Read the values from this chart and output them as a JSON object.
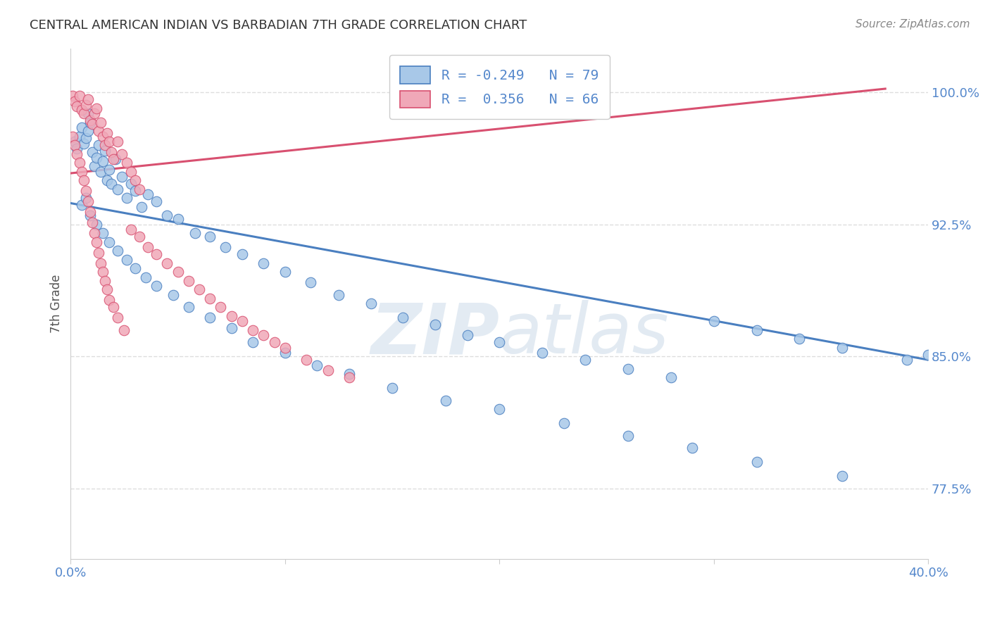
{
  "title": "CENTRAL AMERICAN INDIAN VS BARBADIAN 7TH GRADE CORRELATION CHART",
  "source": "Source: ZipAtlas.com",
  "ylabel": "7th Grade",
  "ytick_labels": [
    "77.5%",
    "85.0%",
    "92.5%",
    "100.0%"
  ],
  "ytick_values": [
    0.775,
    0.85,
    0.925,
    1.0
  ],
  "xmin": 0.0,
  "xmax": 0.4,
  "ymin": 0.735,
  "ymax": 1.025,
  "color_blue": "#a8c8e8",
  "color_pink": "#f0a8b8",
  "color_blue_line": "#4a7fc0",
  "color_pink_line": "#d85070",
  "color_blue_text": "#5588cc",
  "color_title": "#333333",
  "color_source": "#888888",
  "background_color": "#ffffff",
  "grid_color": "#dddddd",
  "blue_line_x": [
    0.0,
    0.4
  ],
  "blue_line_y": [
    0.937,
    0.848
  ],
  "pink_line_x": [
    0.0,
    0.38
  ],
  "pink_line_y": [
    0.954,
    1.002
  ],
  "blue_points_x": [
    0.002,
    0.003,
    0.004,
    0.005,
    0.006,
    0.007,
    0.008,
    0.009,
    0.01,
    0.011,
    0.012,
    0.013,
    0.014,
    0.015,
    0.016,
    0.017,
    0.018,
    0.019,
    0.021,
    0.022,
    0.024,
    0.026,
    0.028,
    0.03,
    0.033,
    0.036,
    0.04,
    0.045,
    0.05,
    0.058,
    0.065,
    0.072,
    0.08,
    0.09,
    0.1,
    0.112,
    0.125,
    0.14,
    0.155,
    0.17,
    0.185,
    0.2,
    0.22,
    0.24,
    0.26,
    0.28,
    0.3,
    0.32,
    0.34,
    0.36,
    0.39,
    0.005,
    0.007,
    0.009,
    0.012,
    0.015,
    0.018,
    0.022,
    0.026,
    0.03,
    0.035,
    0.04,
    0.048,
    0.055,
    0.065,
    0.075,
    0.085,
    0.1,
    0.115,
    0.13,
    0.15,
    0.175,
    0.2,
    0.23,
    0.26,
    0.29,
    0.32,
    0.36,
    0.4,
    0.008
  ],
  "blue_points_y": [
    0.972,
    0.968,
    0.975,
    0.98,
    0.971,
    0.974,
    0.978,
    0.983,
    0.966,
    0.958,
    0.963,
    0.97,
    0.955,
    0.961,
    0.967,
    0.95,
    0.956,
    0.948,
    0.962,
    0.945,
    0.952,
    0.94,
    0.948,
    0.944,
    0.935,
    0.942,
    0.938,
    0.93,
    0.928,
    0.92,
    0.918,
    0.912,
    0.908,
    0.903,
    0.898,
    0.892,
    0.885,
    0.88,
    0.872,
    0.868,
    0.862,
    0.858,
    0.852,
    0.848,
    0.843,
    0.838,
    0.87,
    0.865,
    0.86,
    0.855,
    0.848,
    0.936,
    0.94,
    0.93,
    0.925,
    0.92,
    0.915,
    0.91,
    0.905,
    0.9,
    0.895,
    0.89,
    0.885,
    0.878,
    0.872,
    0.866,
    0.858,
    0.852,
    0.845,
    0.84,
    0.832,
    0.825,
    0.82,
    0.812,
    0.805,
    0.798,
    0.79,
    0.782,
    0.851,
    0.988
  ],
  "pink_points_x": [
    0.001,
    0.002,
    0.003,
    0.004,
    0.005,
    0.006,
    0.007,
    0.008,
    0.009,
    0.01,
    0.011,
    0.012,
    0.013,
    0.014,
    0.015,
    0.016,
    0.017,
    0.018,
    0.019,
    0.02,
    0.022,
    0.024,
    0.026,
    0.028,
    0.03,
    0.032,
    0.001,
    0.002,
    0.003,
    0.004,
    0.005,
    0.006,
    0.007,
    0.008,
    0.009,
    0.01,
    0.011,
    0.012,
    0.013,
    0.014,
    0.015,
    0.016,
    0.017,
    0.018,
    0.02,
    0.022,
    0.025,
    0.028,
    0.032,
    0.036,
    0.04,
    0.045,
    0.05,
    0.055,
    0.06,
    0.065,
    0.07,
    0.075,
    0.08,
    0.085,
    0.09,
    0.095,
    0.1,
    0.11,
    0.12,
    0.13
  ],
  "pink_points_y": [
    0.998,
    0.995,
    0.992,
    0.998,
    0.99,
    0.988,
    0.993,
    0.996,
    0.984,
    0.982,
    0.988,
    0.991,
    0.978,
    0.983,
    0.975,
    0.97,
    0.977,
    0.972,
    0.966,
    0.962,
    0.972,
    0.965,
    0.96,
    0.955,
    0.95,
    0.945,
    0.975,
    0.97,
    0.965,
    0.96,
    0.955,
    0.95,
    0.944,
    0.938,
    0.932,
    0.926,
    0.92,
    0.915,
    0.909,
    0.903,
    0.898,
    0.893,
    0.888,
    0.882,
    0.878,
    0.872,
    0.865,
    0.922,
    0.918,
    0.912,
    0.908,
    0.903,
    0.898,
    0.893,
    0.888,
    0.883,
    0.878,
    0.873,
    0.87,
    0.865,
    0.862,
    0.858,
    0.855,
    0.848,
    0.842,
    0.838
  ]
}
